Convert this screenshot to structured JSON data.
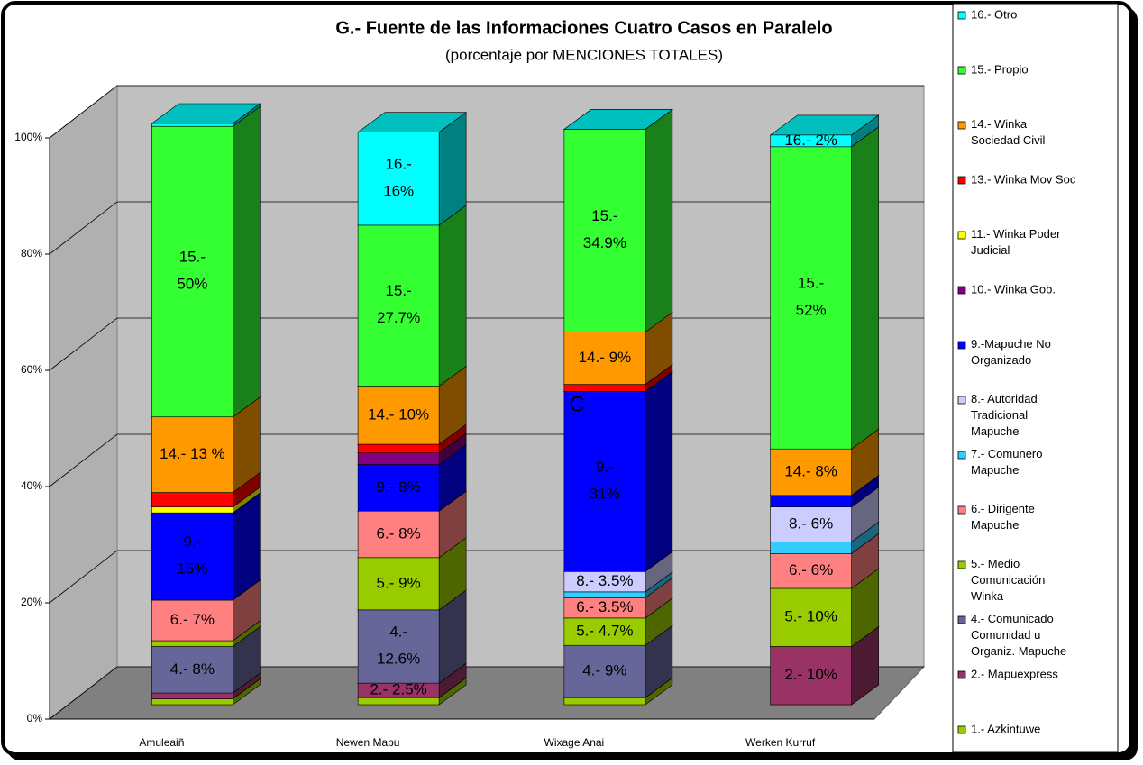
{
  "chart_data": {
    "type": "bar3d-stacked",
    "title": "G.- Fuente de las Informaciones Cuatro Casos en Paralelo",
    "subtitle": "(porcentaje por MENCIONES TOTALES)",
    "annotation": "C",
    "categories": [
      "Amuleaiñ",
      "Newen Mapu",
      "Wixage Anai",
      "Werken Kurruf"
    ],
    "ylim": [
      0,
      100
    ],
    "yticks": [
      {
        "value": 0,
        "label": "0%"
      },
      {
        "value": 20,
        "label": "20%"
      },
      {
        "value": 40,
        "label": "40%"
      },
      {
        "value": 60,
        "label": "60%"
      },
      {
        "value": 80,
        "label": "80%"
      },
      {
        "value": 100,
        "label": "100%"
      }
    ],
    "grid": true,
    "legend": "right",
    "series": [
      {
        "name": "1.- Azkintuwe",
        "color": "#99cc00",
        "values": [
          1,
          1.2,
          1.2,
          0
        ],
        "value_labels": [
          null,
          null,
          null,
          null
        ]
      },
      {
        "name": "2.- Mapuexpress",
        "color": "#993366",
        "values": [
          1,
          2.5,
          0,
          10
        ],
        "value_labels": [
          null,
          "2.- 2.5%",
          null,
          "2.- 10%"
        ]
      },
      {
        "name": "4.- Comunicado\nComunidad u\nOrganiz. Mapuche",
        "color": "#666699",
        "values": [
          8,
          12.6,
          9,
          0
        ],
        "value_labels": [
          "4.- 8%",
          "4.-\n12.6%",
          "4.- 9%",
          null
        ]
      },
      {
        "name": "5.- Medio\nComunicación\nWinka",
        "color": "#99cc00",
        "values": [
          1,
          9,
          4.7,
          10
        ],
        "value_labels": [
          null,
          "5.- 9%",
          "5.- 4.7%",
          "5.- 10%"
        ]
      },
      {
        "name": "6.- Dirigente\nMapuche",
        "color": "#ff8080",
        "values": [
          7,
          8,
          3.5,
          6
        ],
        "value_labels": [
          "6.- 7%",
          "6.- 8%",
          "6.- 3.5%",
          "6.- 6%"
        ]
      },
      {
        "name": "7.- Comunero\nMapuche",
        "color": "#33ccff",
        "values": [
          0,
          0,
          1,
          2
        ],
        "value_labels": [
          null,
          null,
          null,
          null
        ]
      },
      {
        "name": "8.- Autoridad\nTradicional\nMapuche",
        "color": "#ccccff",
        "values": [
          0,
          0,
          3.5,
          6
        ],
        "value_labels": [
          null,
          null,
          "8.- 3.5%",
          "8.- 6%"
        ]
      },
      {
        "name": "9.-Mapuche No\nOrganizado",
        "color": "#0000ff",
        "values": [
          15,
          8,
          31,
          2
        ],
        "value_labels": [
          "9.-\n15%",
          "9.- 8%",
          "9.-\n31%",
          null
        ]
      },
      {
        "name": "10.- Winka Gob.",
        "color": "#800080",
        "values": [
          0,
          2,
          0,
          0
        ],
        "value_labels": [
          null,
          null,
          null,
          null
        ]
      },
      {
        "name": "11.- Winka Poder\nJudicial",
        "color": "#ffff00",
        "values": [
          1,
          0,
          0,
          0
        ],
        "value_labels": [
          null,
          null,
          null,
          null
        ]
      },
      {
        "name": "13.- Winka Mov Soc",
        "color": "#ff0000",
        "values": [
          2.5,
          1.5,
          1.2,
          0
        ],
        "value_labels": [
          null,
          null,
          null,
          null
        ]
      },
      {
        "name": "14.- Winka\nSociedad Civil",
        "color": "#ff9900",
        "values": [
          13,
          10,
          9,
          8
        ],
        "value_labels": [
          "14.- 13 %",
          "14.- 10%",
          "14.- 9%",
          "14.- 8%"
        ]
      },
      {
        "name": "15.- Propio",
        "color": "#33ff33",
        "values": [
          50,
          27.7,
          34.9,
          52
        ],
        "value_labels": [
          "15.-\n50%",
          "15.-\n27.7%",
          "15.-\n34.9%",
          "15.-\n52%"
        ]
      },
      {
        "name": "16.- Otro",
        "color": "#00ffff",
        "values": [
          0.5,
          16,
          0,
          2
        ],
        "value_labels": [
          null,
          "16.-\n16%",
          null,
          "16.- 2%"
        ]
      }
    ]
  }
}
